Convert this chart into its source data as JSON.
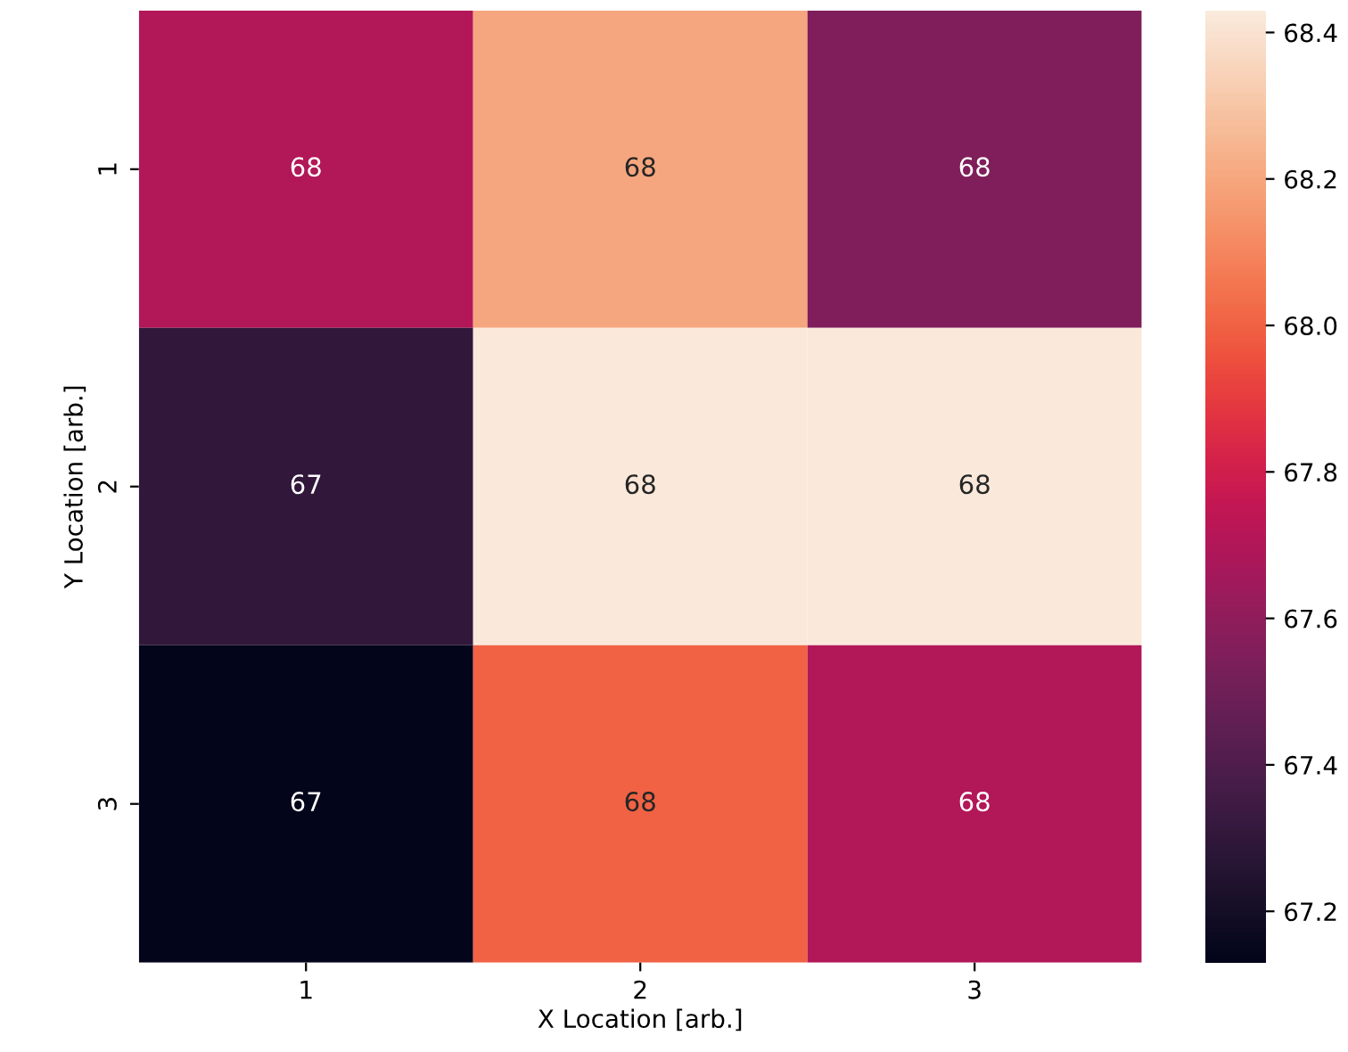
{
  "chart_data": {
    "type": "heatmap",
    "xlabel": "X Location [arb.]",
    "ylabel": "Y Location [arb.]",
    "categories": [
      "1",
      "2",
      "3"
    ],
    "y_categories": [
      "1",
      "2",
      "3"
    ],
    "cells": [
      [
        67.7,
        68.2,
        67.55
      ],
      [
        67.3,
        68.42,
        68.42
      ],
      [
        67.13,
        68.0,
        67.7
      ]
    ],
    "cell_labels": [
      [
        "68",
        "68",
        "68"
      ],
      [
        "67",
        "68",
        "68"
      ],
      [
        "67",
        "68",
        "68"
      ]
    ],
    "clim": [
      67.13,
      68.43
    ],
    "cticks": [
      67.2,
      67.4,
      67.6,
      67.8,
      {
        "value": 68,
        "label": "68.0"
      },
      68.2,
      68.4
    ]
  }
}
